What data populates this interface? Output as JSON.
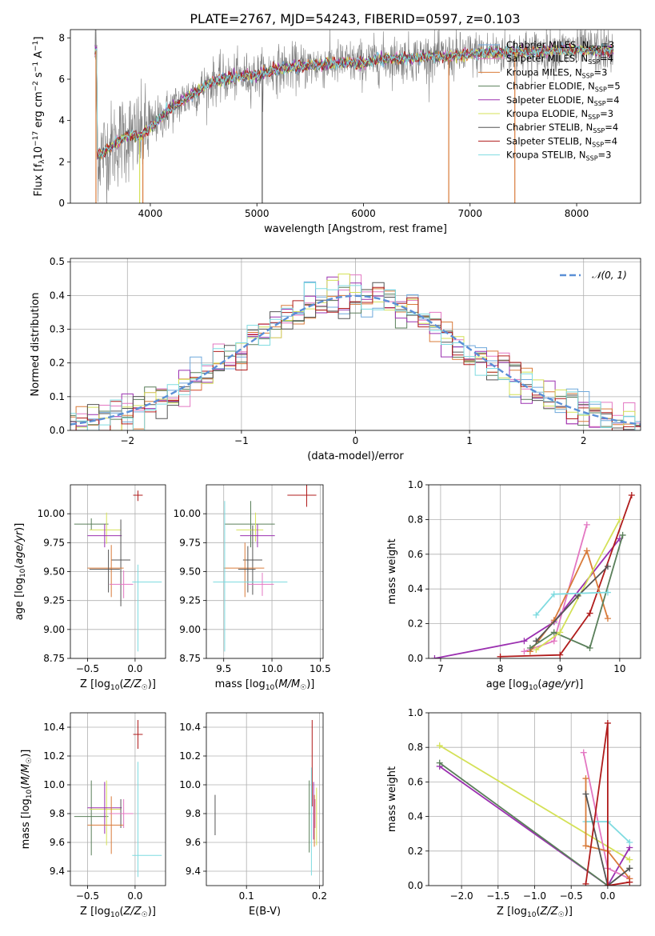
{
  "figure": {
    "title": "PLATE=2767, MJD=54243, FIBERID=0597, z=0.103"
  },
  "series_styles": [
    {
      "key": "chabrier_miles",
      "color": "#6fa8dc"
    },
    {
      "key": "salpeter_miles",
      "color": "#e377c2"
    },
    {
      "key": "kroupa_miles",
      "color": "#d97b3a"
    },
    {
      "key": "chabrier_elodie",
      "color": "#5a7f5a"
    },
    {
      "key": "salpeter_elodie",
      "color": "#9b30b0"
    },
    {
      "key": "kroupa_elodie",
      "color": "#d4e157"
    },
    {
      "key": "chabrier_stelib",
      "color": "#555555"
    },
    {
      "key": "salpeter_stelib",
      "color": "#b01c1c"
    },
    {
      "key": "kroupa_stelib",
      "color": "#7fdbe0"
    }
  ],
  "chart_data": [
    {
      "id": "spectrum",
      "type": "line",
      "xlabel": "wavelength [Angstrom, rest frame]",
      "ylabel": "Flux [f_λ10^-17 erg cm^-2 s^-1 A^-1]",
      "xlim": [
        3250,
        8600
      ],
      "ylim": [
        0,
        8.4
      ],
      "xticks": [
        4000,
        5000,
        6000,
        7000,
        8000
      ],
      "yticks": [
        0,
        2,
        4,
        6,
        8
      ],
      "legend_position": "right",
      "legend": [
        {
          "label": "Chabrier MILES, N_SSP=3",
          "color": "#6fa8dc"
        },
        {
          "label": "Salpeter MILES, N_SSP=4",
          "color": "#e377c2"
        },
        {
          "label": "Kroupa MILES, N_SSP=3",
          "color": "#d97b3a"
        },
        {
          "label": "Chabrier ELODIE, N_SSP=5",
          "color": "#5a7f5a"
        },
        {
          "label": "Salpeter ELODIE, N_SSP=4",
          "color": "#9b30b0"
        },
        {
          "label": "Kroupa ELODIE, N_SSP=3",
          "color": "#d4e157"
        },
        {
          "label": "Chabrier STELIB, N_SSP=4",
          "color": "#555555"
        },
        {
          "label": "Salpeter STELIB, N_SSP=4",
          "color": "#b01c1c"
        },
        {
          "label": "Kroupa STELIB, N_SSP=3",
          "color": "#7fdbe0"
        }
      ],
      "continuum": [
        [
          3500,
          2.3
        ],
        [
          3600,
          2.6
        ],
        [
          3700,
          3.0
        ],
        [
          3800,
          3.3
        ],
        [
          3900,
          3.2
        ],
        [
          4000,
          3.7
        ],
        [
          4200,
          4.6
        ],
        [
          4400,
          5.3
        ],
        [
          4600,
          5.9
        ],
        [
          4800,
          6.1
        ],
        [
          5000,
          6.2
        ],
        [
          5200,
          6.5
        ],
        [
          5400,
          6.6
        ],
        [
          5600,
          6.7
        ],
        [
          5800,
          6.8
        ],
        [
          6000,
          6.8
        ],
        [
          6200,
          7.0
        ],
        [
          6400,
          7.0
        ],
        [
          6600,
          7.1
        ],
        [
          6800,
          7.1
        ],
        [
          7000,
          7.2
        ],
        [
          7200,
          7.3
        ],
        [
          7400,
          7.3
        ],
        [
          7600,
          7.3
        ],
        [
          7800,
          7.4
        ],
        [
          8000,
          7.4
        ],
        [
          8300,
          7.4
        ]
      ],
      "data_range": [
        3480,
        8350
      ],
      "drop_lines": [
        {
          "x": 3490,
          "color": "#d97b3a"
        },
        {
          "x": 3900,
          "color": "#d4e157"
        },
        {
          "x": 3930,
          "color": "#d97b3a"
        },
        {
          "x": 5050,
          "color": "#555555"
        },
        {
          "x": 6800,
          "color": "#d97b3a"
        },
        {
          "x": 7420,
          "color": "#d97b3a"
        }
      ]
    },
    {
      "id": "residuals",
      "type": "line",
      "xlabel": "(data-model)/error",
      "ylabel": "Normed distribution",
      "xlim": [
        -2.5,
        2.5
      ],
      "ylim": [
        0,
        0.51
      ],
      "xticks": [
        -2,
        -1,
        0,
        1,
        2
      ],
      "yticks": [
        0.0,
        0.1,
        0.2,
        0.3,
        0.4,
        0.5
      ],
      "grid": true,
      "legend_position": "top-right",
      "reference": {
        "label": "𝒩(0, 1)",
        "color": "#5b8fd6",
        "mu": 0,
        "sigma": 1
      }
    },
    {
      "id": "age_vs_z",
      "type": "scatter",
      "xlabel": "Z [log10(Z/Z☉)]",
      "ylabel": "age [log10(age/yr)]",
      "xlim": [
        -0.68,
        0.32
      ],
      "ylim": [
        8.75,
        10.25
      ],
      "xticks": [
        -0.5,
        0.0
      ],
      "yticks": [
        8.75,
        9.0,
        9.25,
        9.5,
        9.75,
        10.0
      ],
      "grid": true,
      "points": [
        {
          "x": 0.03,
          "xerr": [
            0.05,
            0.05
          ],
          "y": 10.16,
          "yerr": [
            0.05,
            0.04
          ],
          "color": "#b01c1c"
        },
        {
          "x": -0.46,
          "xerr": [
            0.18,
            0.18
          ],
          "y": 9.91,
          "yerr": [
            0.05,
            0.05
          ],
          "color": "#5a7f5a"
        },
        {
          "x": -0.3,
          "xerr": [
            0.18,
            0.15
          ],
          "y": 9.86,
          "yerr": [
            0.12,
            0.15
          ],
          "color": "#d4e157"
        },
        {
          "x": -0.32,
          "xerr": [
            0.18,
            0.18
          ],
          "y": 9.81,
          "yerr": [
            0.1,
            0.1
          ],
          "color": "#9b30b0"
        },
        {
          "x": -0.15,
          "xerr": [
            0.1,
            0.1
          ],
          "y": 9.6,
          "yerr": [
            0.4,
            0.35
          ],
          "color": "#555555"
        },
        {
          "x": -0.25,
          "xerr": [
            0.25,
            0.13
          ],
          "y": 9.53,
          "yerr": [
            0.25,
            0.2
          ],
          "color": "#d97b3a"
        },
        {
          "x": -0.28,
          "xerr": [
            0.2,
            0.12
          ],
          "y": 9.52,
          "yerr": [
            0.2,
            0.17
          ],
          "color": "#555555"
        },
        {
          "x": 0.03,
          "xerr": [
            0.06,
            0.25
          ],
          "y": 9.41,
          "yerr": [
            0.6,
            0.15
          ],
          "color": "#7fdbe0"
        },
        {
          "x": -0.12,
          "xerr": [
            0.15,
            0.1
          ],
          "y": 9.39,
          "yerr": [
            0.12,
            0.12
          ],
          "color": "#e377c2"
        }
      ]
    },
    {
      "id": "age_vs_mass",
      "type": "scatter",
      "xlabel": "mass [log10(M/M☉)]",
      "ylabel": "",
      "xlim": [
        9.32,
        10.53
      ],
      "ylim": [
        8.75,
        10.25
      ],
      "xticks": [
        9.5,
        10.0,
        10.5
      ],
      "yticks": [
        8.75,
        9.0,
        9.25,
        9.5,
        9.75,
        10.0
      ],
      "grid": true,
      "points": [
        {
          "x": 10.36,
          "xerr": [
            0.2,
            0.1
          ],
          "y": 10.16,
          "yerr": [
            0.1,
            0.1
          ],
          "color": "#b01c1c"
        },
        {
          "x": 9.78,
          "xerr": [
            0.27,
            0.25
          ],
          "y": 9.91,
          "yerr": [
            0.2,
            0.2
          ],
          "color": "#5a7f5a"
        },
        {
          "x": 9.83,
          "xerr": [
            0.2,
            0.08
          ],
          "y": 9.86,
          "yerr": [
            0.1,
            0.15
          ],
          "color": "#d4e157"
        },
        {
          "x": 9.85,
          "xerr": [
            0.18,
            0.18
          ],
          "y": 9.81,
          "yerr": [
            0.1,
            0.1
          ],
          "color": "#9b30b0"
        },
        {
          "x": 9.8,
          "xerr": [
            0.1,
            0.1
          ],
          "y": 9.6,
          "yerr": [
            0.3,
            0.3
          ],
          "color": "#555555"
        },
        {
          "x": 9.72,
          "xerr": [
            0.22,
            0.2
          ],
          "y": 9.53,
          "yerr": [
            0.25,
            0.22
          ],
          "color": "#d97b3a"
        },
        {
          "x": 9.75,
          "xerr": [
            0.1,
            0.08
          ],
          "y": 9.52,
          "yerr": [
            0.2,
            0.2
          ],
          "color": "#555555"
        },
        {
          "x": 9.51,
          "xerr": [
            0.12,
            0.65
          ],
          "y": 9.41,
          "yerr": [
            0.6,
            0.7
          ],
          "color": "#7fdbe0"
        },
        {
          "x": 9.9,
          "xerr": [
            0.15,
            0.12
          ],
          "y": 9.39,
          "yerr": [
            0.1,
            0.1
          ],
          "color": "#e377c2"
        }
      ]
    },
    {
      "id": "weight_vs_age",
      "type": "line",
      "xlabel": "age [log10(age/yr)]",
      "ylabel": "mass weight",
      "xlim": [
        6.8,
        10.35
      ],
      "ylim": [
        0,
        1.0
      ],
      "xticks": [
        7,
        8,
        9,
        10
      ],
      "yticks": [
        0.0,
        0.2,
        0.4,
        0.6,
        0.8,
        1.0
      ],
      "grid": true,
      "series": [
        {
          "color": "#9b30b0",
          "x": [
            6.9,
            8.4,
            8.9,
            10.0
          ],
          "y": [
            0.0,
            0.1,
            0.21,
            0.69
          ]
        },
        {
          "color": "#b01c1c",
          "x": [
            8.0,
            9.0,
            9.5,
            10.2
          ],
          "y": [
            0.01,
            0.02,
            0.26,
            0.94
          ]
        },
        {
          "color": "#e377c2",
          "x": [
            8.4,
            8.9,
            9.45
          ],
          "y": [
            0.04,
            0.1,
            0.77
          ]
        },
        {
          "color": "#d97b3a",
          "x": [
            8.5,
            8.9,
            9.45,
            9.8
          ],
          "y": [
            0.04,
            0.22,
            0.62,
            0.23
          ]
        },
        {
          "color": "#5a7f5a",
          "x": [
            8.5,
            8.9,
            9.5,
            10.05
          ],
          "y": [
            0.06,
            0.15,
            0.06,
            0.71
          ]
        },
        {
          "color": "#d4e157",
          "x": [
            8.6,
            9.0,
            10.0
          ],
          "y": [
            0.05,
            0.15,
            0.8
          ]
        },
        {
          "color": "#555555",
          "x": [
            8.6,
            9.3,
            9.8
          ],
          "y": [
            0.1,
            0.36,
            0.53
          ]
        },
        {
          "color": "#7fdbe0",
          "x": [
            8.6,
            8.9,
            9.8
          ],
          "y": [
            0.25,
            0.37,
            0.38
          ]
        }
      ]
    },
    {
      "id": "mass_vs_z",
      "type": "scatter",
      "xlabel": "Z [log10(Z/Z☉)]",
      "ylabel": "mass [log10(M/M☉)]",
      "xlim": [
        -0.68,
        0.32
      ],
      "ylim": [
        9.3,
        10.5
      ],
      "xticks": [
        -0.5,
        0.0
      ],
      "yticks": [
        9.4,
        9.6,
        9.8,
        10.0,
        10.2,
        10.4
      ],
      "grid": true,
      "points": [
        {
          "x": 0.03,
          "xerr": [
            0.05,
            0.05
          ],
          "y": 10.35,
          "yerr": [
            0.1,
            0.1
          ],
          "color": "#b01c1c"
        },
        {
          "x": -0.46,
          "xerr": [
            0.18,
            0.18
          ],
          "y": 9.78,
          "yerr": [
            0.27,
            0.25
          ],
          "color": "#5a7f5a"
        },
        {
          "x": -0.3,
          "xerr": [
            0.18,
            0.15
          ],
          "y": 9.83,
          "yerr": [
            0.25,
            0.2
          ],
          "color": "#d4e157"
        },
        {
          "x": -0.32,
          "xerr": [
            0.18,
            0.18
          ],
          "y": 9.84,
          "yerr": [
            0.18,
            0.18
          ],
          "color": "#9b30b0"
        },
        {
          "x": -0.15,
          "xerr": [
            0.1,
            0.1
          ],
          "y": 9.8,
          "yerr": [
            0.1,
            0.1
          ],
          "color": "#555555"
        },
        {
          "x": -0.25,
          "xerr": [
            0.25,
            0.13
          ],
          "y": 9.72,
          "yerr": [
            0.2,
            0.2
          ],
          "color": "#d97b3a"
        },
        {
          "x": 0.03,
          "xerr": [
            0.06,
            0.25
          ],
          "y": 9.51,
          "yerr": [
            0.15,
            0.65
          ],
          "color": "#7fdbe0"
        },
        {
          "x": -0.12,
          "xerr": [
            0.15,
            0.1
          ],
          "y": 9.8,
          "yerr": [
            0.1,
            0.1
          ],
          "color": "#e377c2"
        }
      ]
    },
    {
      "id": "mass_vs_ebv",
      "type": "scatter",
      "xlabel": "E(B-V)",
      "ylabel": "",
      "xlim": [
        0.045,
        0.205
      ],
      "ylim": [
        9.3,
        10.5
      ],
      "xticks": [
        0.1,
        0.2
      ],
      "yticks": [
        9.4,
        9.6,
        9.8,
        10.0,
        10.2,
        10.4
      ],
      "grid": true,
      "points": [
        {
          "x": 0.057,
          "y": 9.79,
          "yerr": [
            0.14,
            0.14
          ],
          "color": "#555555"
        },
        {
          "x": 0.19,
          "y": 10.15,
          "yerr": [
            0.3,
            0.3
          ],
          "color": "#b01c1c"
        },
        {
          "x": 0.186,
          "y": 9.78,
          "yerr": [
            0.25,
            0.25
          ],
          "color": "#5a7f5a"
        },
        {
          "x": 0.192,
          "y": 9.82,
          "yerr": [
            0.2,
            0.2
          ],
          "color": "#9b30b0"
        },
        {
          "x": 0.196,
          "y": 9.78,
          "yerr": [
            0.2,
            0.2
          ],
          "color": "#d4e157"
        },
        {
          "x": 0.193,
          "y": 9.75,
          "yerr": [
            0.18,
            0.18
          ],
          "color": "#d97b3a"
        },
        {
          "x": 0.189,
          "y": 9.72,
          "yerr": [
            0.35,
            0.4
          ],
          "color": "#7fdbe0"
        },
        {
          "x": 0.194,
          "y": 9.8,
          "yerr": [
            0.1,
            0.1
          ],
          "color": "#e377c2"
        }
      ]
    },
    {
      "id": "weight_vs_z",
      "type": "line",
      "xlabel": "Z [log10(Z/Z☉)]",
      "ylabel": "mass weight",
      "xlim": [
        -2.45,
        0.45
      ],
      "ylim": [
        0,
        1.0
      ],
      "xticks": [
        -2.0,
        -1.5,
        -1.0,
        -0.5,
        0.0
      ],
      "yticks": [
        0.0,
        0.2,
        0.4,
        0.6,
        0.8,
        1.0
      ],
      "grid": true,
      "series": [
        {
          "color": "#d4e157",
          "x": [
            -2.3,
            0.3
          ],
          "y": [
            0.81,
            0.15
          ]
        },
        {
          "color": "#9b30b0",
          "x": [
            -2.3,
            0.0,
            0.3
          ],
          "y": [
            0.69,
            0.0,
            0.22
          ]
        },
        {
          "color": "#5a7f5a",
          "x": [
            -2.3,
            0.0,
            0.3
          ],
          "y": [
            0.71,
            0.0,
            0.1
          ]
        },
        {
          "color": "#e377c2",
          "x": [
            -0.33,
            0.0,
            0.3
          ],
          "y": [
            0.77,
            0.1,
            0.04
          ]
        },
        {
          "color": "#7fdbe0",
          "x": [
            -0.3,
            0.0,
            0.3
          ],
          "y": [
            0.37,
            0.37,
            0.25
          ]
        },
        {
          "color": "#d97b3a",
          "x": [
            -0.3,
            -0.3,
            0.0,
            0.3
          ],
          "y": [
            0.62,
            0.23,
            0.2,
            0.04
          ]
        },
        {
          "color": "#555555",
          "x": [
            -0.3,
            0.0,
            0.3
          ],
          "y": [
            0.53,
            0.0,
            0.1
          ]
        },
        {
          "color": "#b01c1c",
          "x": [
            -0.3,
            0.0,
            0.0,
            0.3
          ],
          "y": [
            0.01,
            0.94,
            0.0,
            0.02
          ]
        }
      ]
    }
  ]
}
